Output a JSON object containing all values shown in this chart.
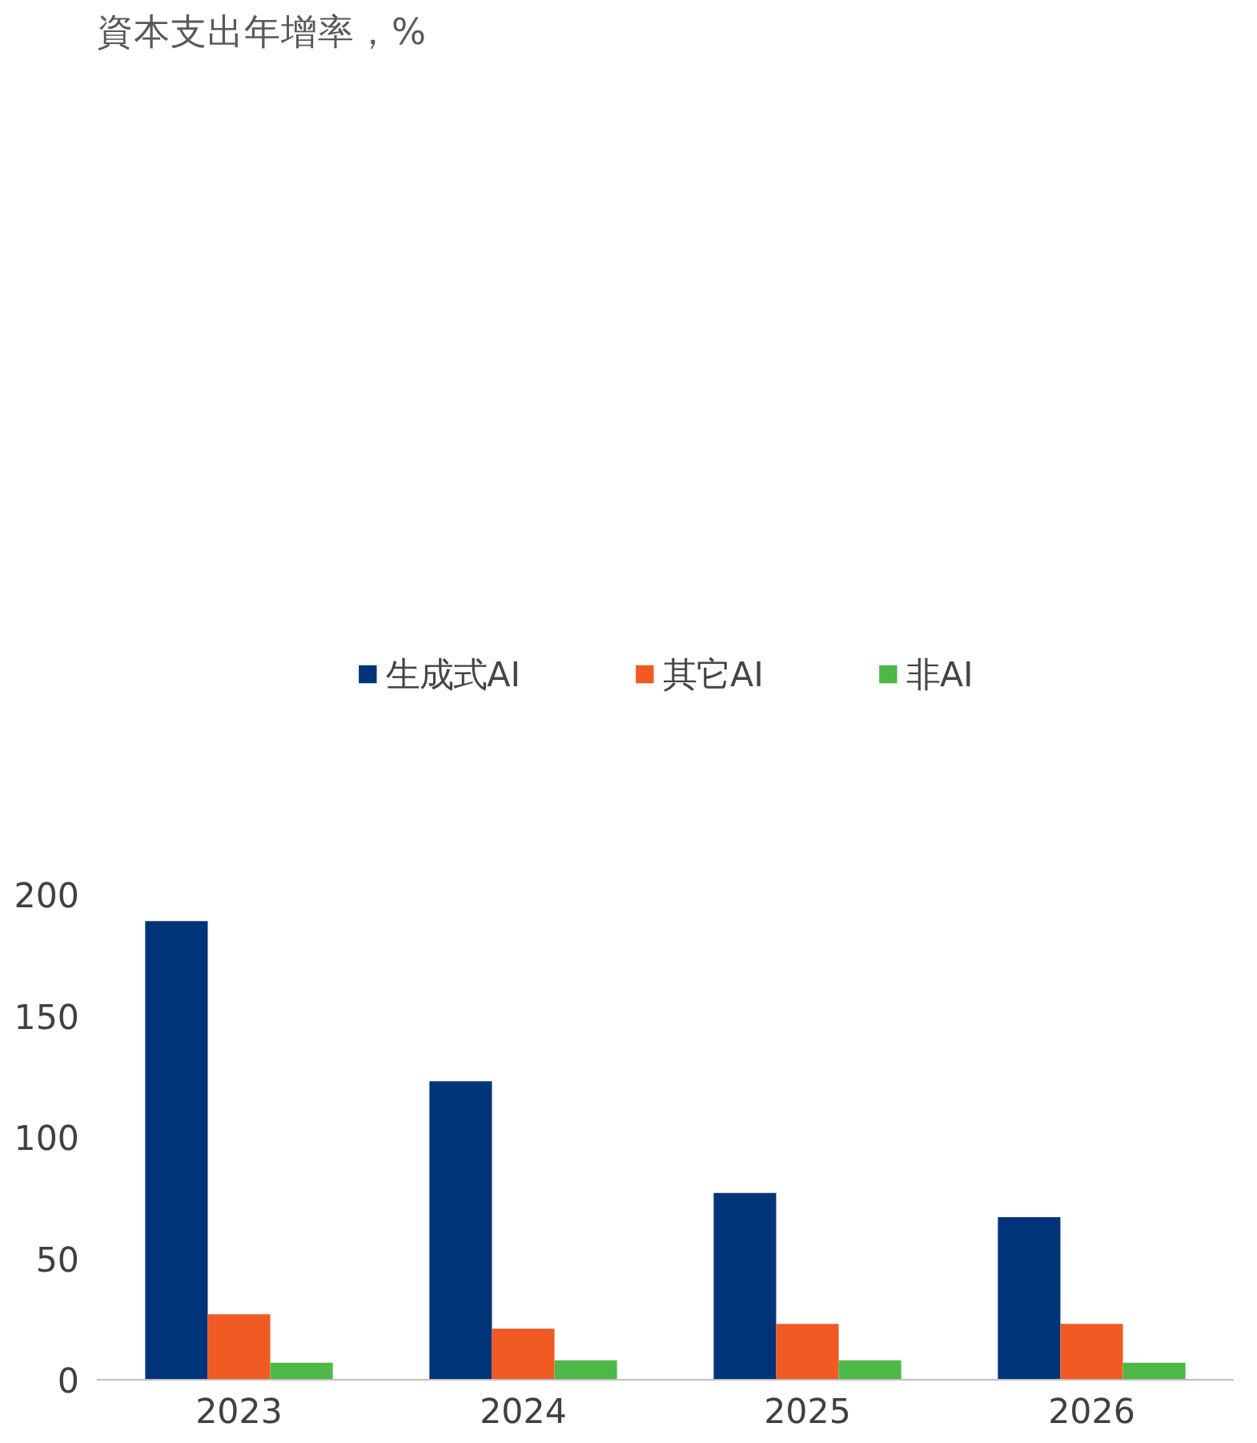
{
  "chart_data": {
    "type": "bar",
    "title": "資本支出年增率，%",
    "categories": [
      "2023",
      "2024",
      "2025",
      "2026"
    ],
    "series": [
      {
        "name": "生成式AI",
        "color": "#003478",
        "values": [
          189,
          123,
          77,
          67
        ]
      },
      {
        "name": "其它AI",
        "color": "#f15a22",
        "values": [
          27,
          21,
          23,
          23
        ]
      },
      {
        "name": "非AI",
        "color": "#4db848",
        "values": [
          7,
          8,
          8,
          7
        ]
      }
    ],
    "ylim": [
      0,
      200
    ],
    "yticks": [
      0,
      50,
      100,
      150,
      200
    ],
    "grid": false,
    "legend": "top"
  }
}
